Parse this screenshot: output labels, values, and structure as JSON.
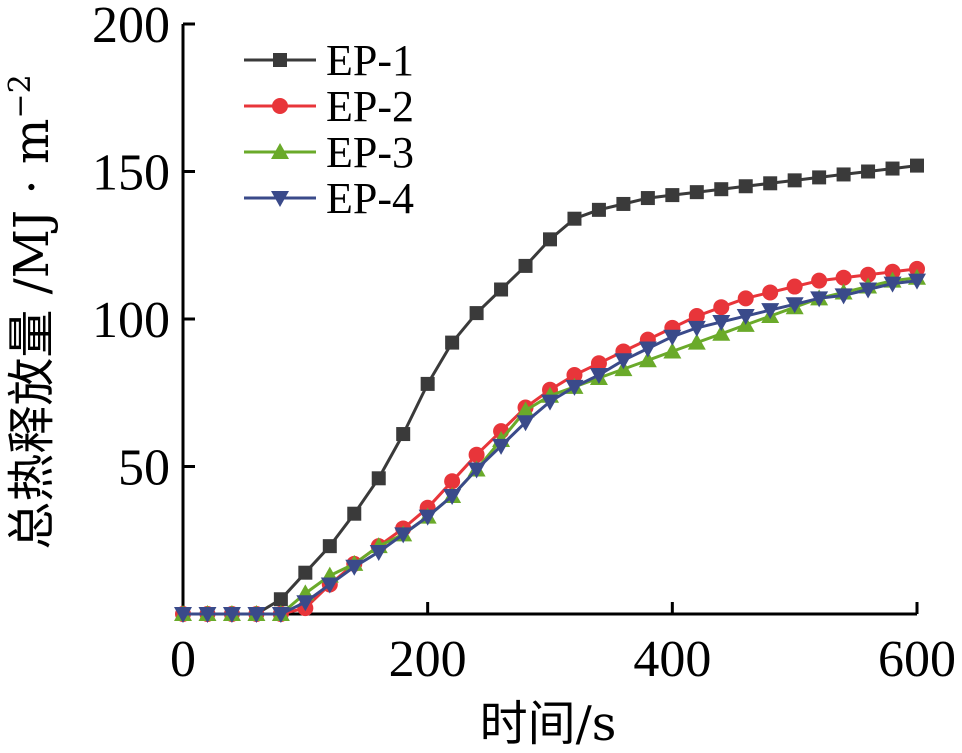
{
  "chart_data": {
    "type": "line",
    "xlabel": "时间/s",
    "ylabel": "总热释放量 /MJ · m",
    "ylabel_exp": "−2",
    "xlim": [
      0,
      600
    ],
    "ylim": [
      0,
      200
    ],
    "xticks": [
      0,
      200,
      400,
      600
    ],
    "xtick_labels": [
      "0",
      "200",
      "400",
      "600"
    ],
    "yticks": [
      50,
      100,
      150,
      200
    ],
    "ytick_labels": [
      "50",
      "100",
      "150",
      "200"
    ],
    "grid": false,
    "legend_position": "top-left",
    "x": [
      0,
      20,
      40,
      60,
      80,
      100,
      120,
      140,
      160,
      180,
      200,
      220,
      240,
      260,
      280,
      300,
      320,
      340,
      360,
      380,
      400,
      420,
      440,
      460,
      480,
      500,
      520,
      540,
      560,
      580,
      600
    ],
    "series": [
      {
        "name": "EP-1",
        "color": "#3a3a3a",
        "marker": "square",
        "values": [
          0,
          0,
          0,
          0,
          5,
          14,
          23,
          34,
          46,
          61,
          78,
          92,
          102,
          110,
          118,
          127,
          134,
          137,
          139,
          141,
          142,
          143,
          144,
          145,
          146,
          147,
          148,
          149,
          150,
          151,
          152
        ]
      },
      {
        "name": "EP-2",
        "color": "#e8353a",
        "marker": "circle",
        "values": [
          0,
          0,
          0,
          0,
          0,
          2,
          10,
          17,
          23,
          29,
          36,
          45,
          54,
          62,
          70,
          76,
          81,
          85,
          89,
          93,
          97,
          101,
          104,
          107,
          109,
          111,
          113,
          114,
          115,
          116,
          117
        ]
      },
      {
        "name": "EP-3",
        "color": "#6aaa2a",
        "marker": "triangle-up",
        "values": [
          0,
          0,
          0,
          0,
          0,
          7,
          13,
          17,
          23,
          27,
          33,
          40,
          49,
          59,
          69,
          74,
          77,
          80,
          83,
          86,
          89,
          92,
          95,
          98,
          101,
          104,
          107,
          109,
          111,
          113,
          114
        ]
      },
      {
        "name": "EP-4",
        "color": "#3a4a8a",
        "marker": "triangle-down",
        "values": [
          0,
          0,
          0,
          0,
          0,
          4,
          10,
          16,
          21,
          27,
          33,
          40,
          49,
          57,
          65,
          72,
          77,
          81,
          86,
          90,
          94,
          97,
          99,
          101,
          103,
          105,
          107,
          108,
          110,
          112,
          113
        ]
      }
    ]
  }
}
